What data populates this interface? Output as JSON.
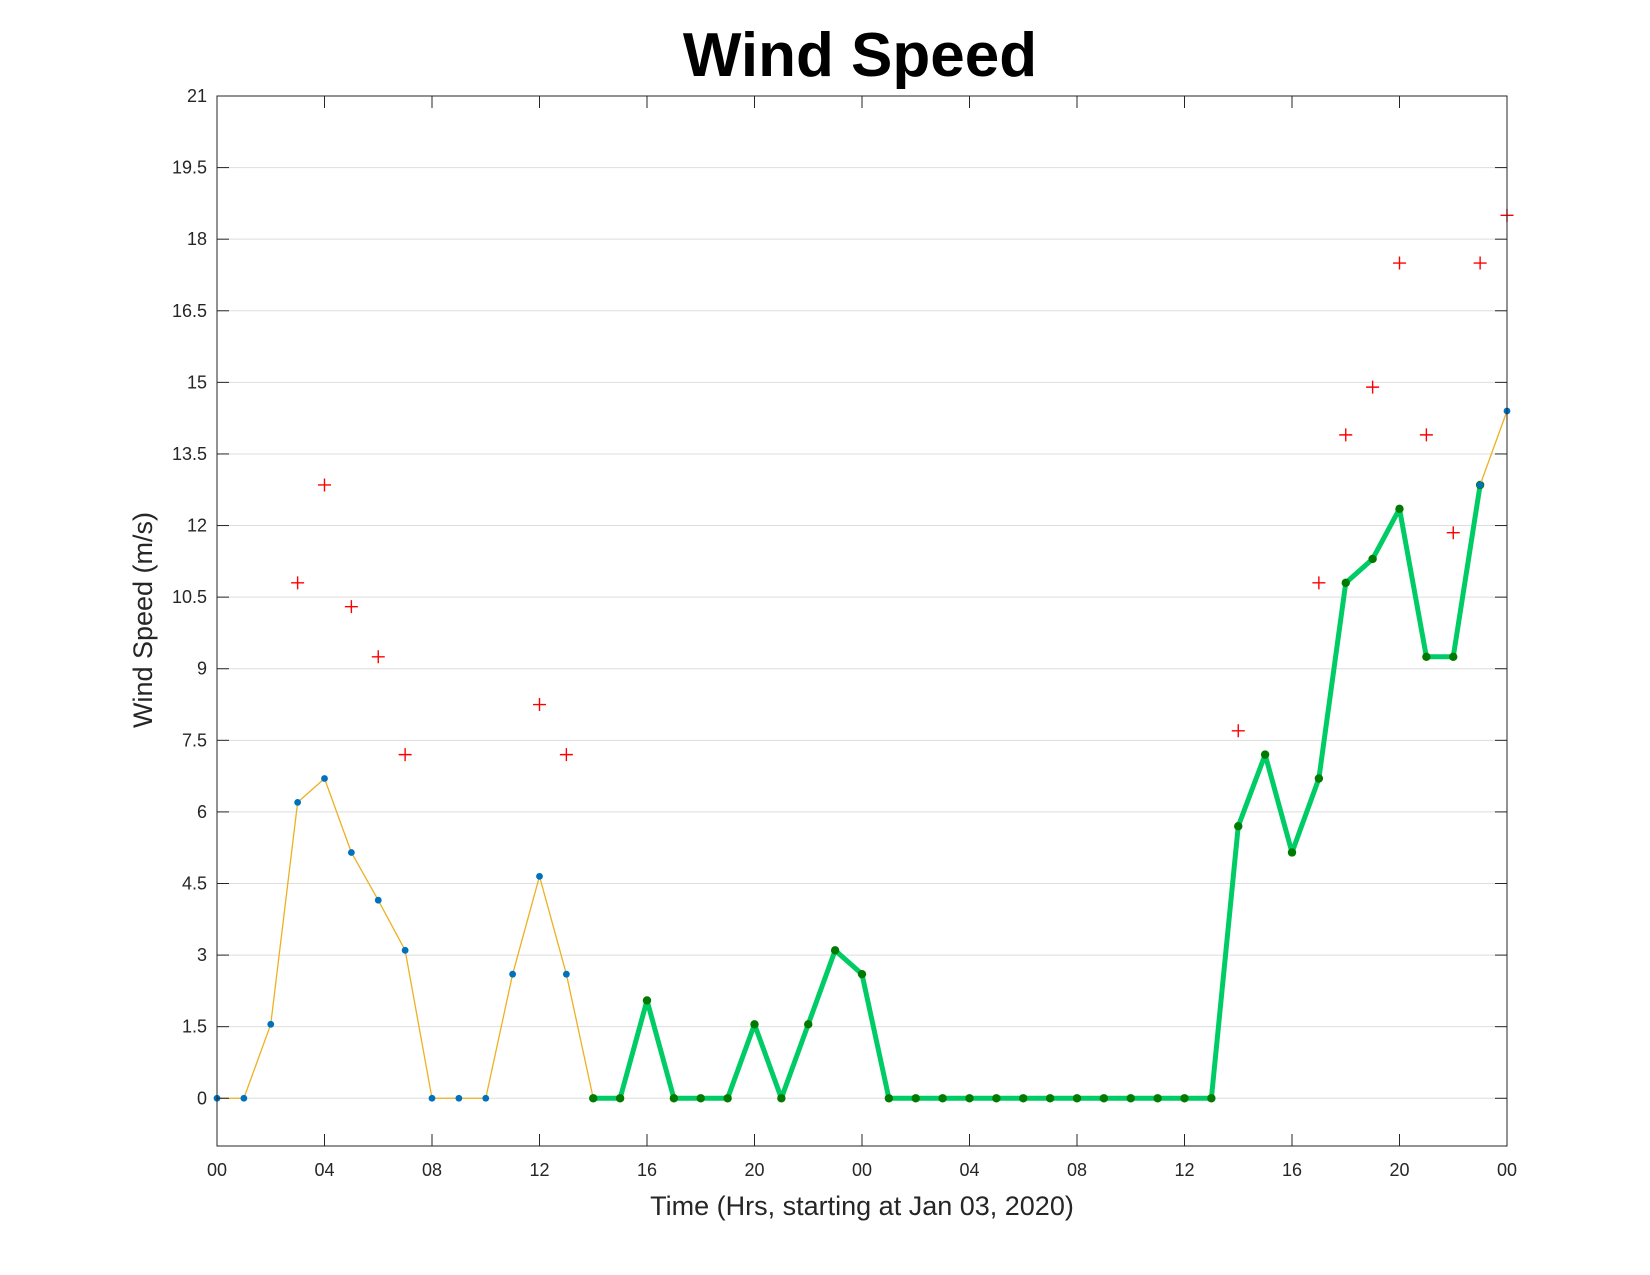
{
  "chart_data": {
    "type": "line",
    "title": "Wind Speed",
    "xlabel": "Time (Hrs, starting at Jan 03, 2020)",
    "ylabel": "Wind Speed (m/s)",
    "x_unit": "hour",
    "xlim": [
      0,
      48
    ],
    "ylim": [
      -1,
      21
    ],
    "yticks": [
      0,
      1.5,
      3,
      4.5,
      6,
      7.5,
      9,
      10.5,
      12,
      13.5,
      15,
      16.5,
      18,
      19.5,
      21
    ],
    "ytick_labels": [
      "0",
      "1.5",
      "3",
      "4.5",
      "6",
      "7.5",
      "9",
      "10.5",
      "12",
      "13.5",
      "15",
      "16.5",
      "18",
      "19.5",
      "21"
    ],
    "xticks": [
      0,
      4,
      8,
      12,
      16,
      20,
      24,
      28,
      32,
      36,
      40,
      44,
      48
    ],
    "xtick_labels": [
      "00",
      "04",
      "08",
      "12",
      "16",
      "20",
      "00",
      "04",
      "08",
      "12",
      "16",
      "20",
      "00"
    ],
    "grid": "horizontal",
    "series": [
      {
        "style": "thin-line-blue-dots",
        "color": "#EDB120",
        "marker_color": "#0072BD",
        "x": [
          0,
          1,
          2,
          3,
          4,
          5,
          6,
          7,
          8,
          9,
          10,
          11,
          12,
          13,
          14
        ],
        "values": [
          0,
          0,
          1.55,
          6.2,
          6.7,
          5.15,
          4.15,
          3.1,
          0,
          0,
          0,
          2.6,
          4.65,
          2.6,
          0
        ]
      },
      {
        "style": "thick-line-green-dots",
        "color": "#00CC66",
        "marker_color": "#007A00",
        "x": [
          14,
          15,
          16,
          17,
          18,
          19,
          20,
          21,
          22,
          23,
          24,
          25,
          26,
          27,
          28,
          29,
          30,
          31,
          32,
          33,
          34,
          35,
          36,
          37,
          38,
          39,
          40,
          41,
          42,
          43,
          44,
          45,
          46,
          47
        ],
        "values": [
          0,
          0,
          2.05,
          0,
          0,
          0,
          1.55,
          0,
          1.55,
          3.1,
          2.6,
          0,
          0,
          0,
          0,
          0,
          0,
          0,
          0,
          0,
          0,
          0,
          0,
          0,
          5.7,
          7.2,
          5.15,
          6.7,
          10.8,
          11.3,
          12.35,
          9.25,
          9.25,
          12.85
        ]
      },
      {
        "style": "thin-line-blue-dots",
        "color": "#EDB120",
        "marker_color": "#0072BD",
        "x": [
          47,
          48
        ],
        "values": [
          12.85,
          14.4
        ]
      },
      {
        "style": "red-plus-markers",
        "color": "#FF0000",
        "x": [
          3,
          4,
          5,
          6,
          7,
          12,
          13,
          38,
          41,
          42,
          43,
          44,
          45,
          46,
          47,
          48
        ],
        "values": [
          10.8,
          12.85,
          10.3,
          9.25,
          7.2,
          8.25,
          7.2,
          7.7,
          10.8,
          13.9,
          14.9,
          17.5,
          13.9,
          11.85,
          17.5,
          18.5
        ]
      }
    ]
  }
}
